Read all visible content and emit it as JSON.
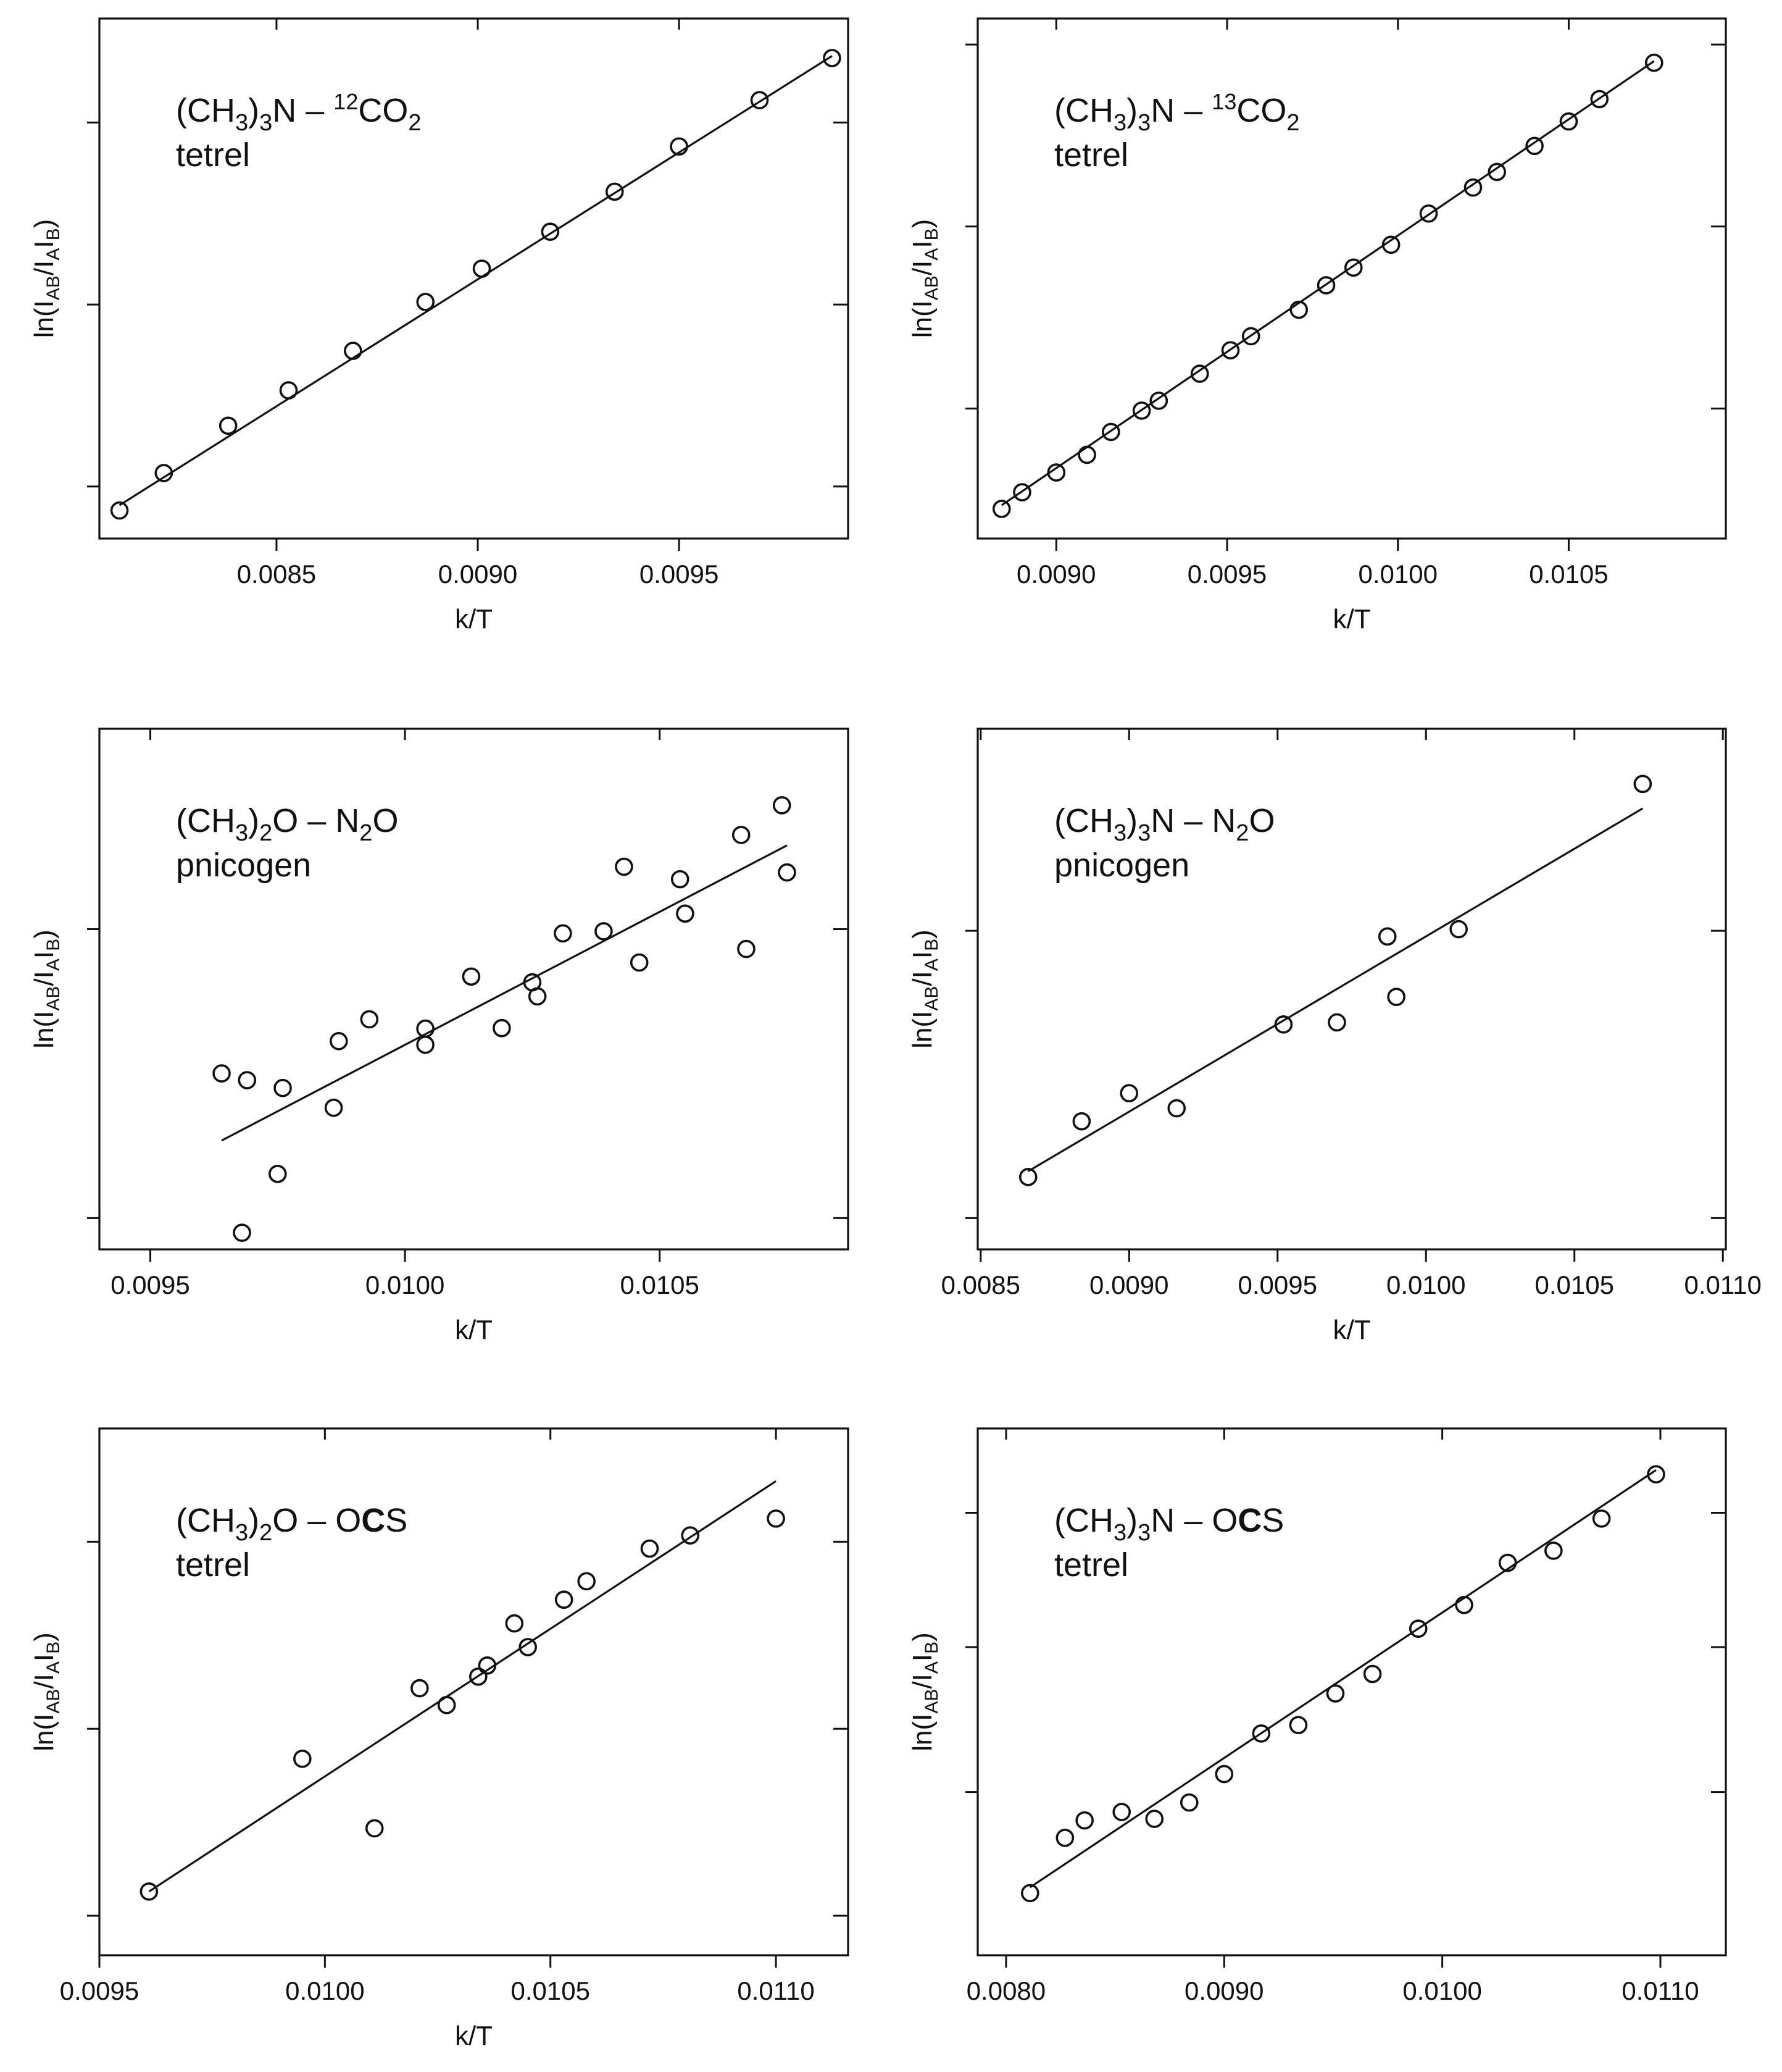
{
  "figure": {
    "panels_count": 6
  },
  "chart_data": [
    {
      "id": "p1",
      "type": "scatter",
      "title": "",
      "ylabel": "ln(I_AB/I_A I_B)",
      "xlabel": "k/T",
      "annotation": {
        "main_pre": "(CH",
        "sub1": "3",
        "main_mid": ")",
        "sub2": "3",
        "main_post": "N – ",
        "iso": "12",
        "main_end": "CO",
        "sub3": "2",
        "line2": "tetrel"
      },
      "xlim": [
        0.00806,
        0.00992
      ],
      "ylim": [
        0,
        1
      ],
      "xticks": [
        0.0085,
        0.009,
        0.0095
      ],
      "xtick_labels": [
        "0.0085",
        "0.0090",
        "0.0095"
      ],
      "yticks": [
        0.1,
        0.45,
        0.8
      ],
      "grid": false,
      "x": [
        0.00811,
        0.00822,
        0.00838,
        0.00853,
        0.00869,
        0.00887,
        0.00901,
        0.00918,
        0.00934,
        0.0095,
        0.0097,
        0.00988
      ],
      "y": [
        0.054,
        0.126,
        0.217,
        0.285,
        0.361,
        0.455,
        0.519,
        0.59,
        0.667,
        0.754,
        0.843,
        0.924
      ],
      "fit": [
        [
          0.00811,
          0.064
        ],
        [
          0.00988,
          0.928
        ]
      ]
    },
    {
      "id": "p2",
      "type": "scatter",
      "ylabel": "ln(I_AB/I_A I_B)",
      "xlabel": "k/T",
      "annotation": {
        "main_pre": "(CH",
        "sub1": "3",
        "main_mid": ")",
        "sub2": "3",
        "main_post": "N – ",
        "iso": "13",
        "main_end": "CO",
        "sub3": "2",
        "line2": "tetrel"
      },
      "xlim": [
        0.00877,
        0.01096
      ],
      "ylim": [
        0,
        1
      ],
      "xticks": [
        0.009,
        0.0095,
        0.01,
        0.0105
      ],
      "xtick_labels": [
        "0.0090",
        "0.0095",
        "0.0100",
        "0.0105"
      ],
      "yticks": [
        0.25,
        0.6,
        0.95
      ],
      "grid": false,
      "x": [
        0.00884,
        0.0089,
        0.009,
        0.00909,
        0.00916,
        0.00925,
        0.0093,
        0.00942,
        0.00951,
        0.00957,
        0.00971,
        0.00979,
        0.00987,
        0.00998,
        0.01009,
        0.01022,
        0.01029,
        0.0104,
        0.0105,
        0.01059,
        0.01075
      ],
      "y": [
        0.057,
        0.089,
        0.127,
        0.161,
        0.205,
        0.246,
        0.265,
        0.317,
        0.362,
        0.389,
        0.44,
        0.487,
        0.521,
        0.565,
        0.625,
        0.675,
        0.705,
        0.755,
        0.802,
        0.845,
        0.915
      ],
      "fit": [
        [
          0.00884,
          0.064
        ],
        [
          0.01075,
          0.918
        ]
      ]
    },
    {
      "id": "p3",
      "type": "scatter",
      "ylabel": "ln(I_AB/I_A I_B)",
      "xlabel": "k/T",
      "annotation": {
        "main_pre": "(CH",
        "sub1": "3",
        "main_mid": ")",
        "sub2": "2",
        "main_post": "O – N",
        "iso": "",
        "main_end": "",
        "sub3": "2",
        "tail": "O",
        "line2": "pnicogen"
      },
      "xlim": [
        0.0094,
        0.01087
      ],
      "ylim": [
        0,
        1
      ],
      "xticks": [
        0.0095,
        0.01,
        0.0105
      ],
      "xtick_labels": [
        "0.0095",
        "0.0100",
        "0.0105"
      ],
      "yticks": [
        0.06,
        0.615
      ],
      "grid": false,
      "x": [
        0.00964,
        0.00969,
        0.00968,
        0.00975,
        0.00976,
        0.00986,
        0.00987,
        0.00993,
        0.01004,
        0.01004,
        0.01013,
        0.01019,
        0.01025,
        0.01026,
        0.01031,
        0.01039,
        0.01043,
        0.01046,
        0.01054,
        0.01055,
        0.01066,
        0.01067,
        0.01074,
        0.01075
      ],
      "y": [
        0.338,
        0.325,
        0.032,
        0.145,
        0.31,
        0.272,
        0.4,
        0.442,
        0.424,
        0.393,
        0.524,
        0.425,
        0.513,
        0.486,
        0.607,
        0.611,
        0.735,
        0.551,
        0.711,
        0.645,
        0.796,
        0.577,
        0.853,
        0.724
      ],
      "fit": [
        [
          0.00964,
          0.209
        ],
        [
          0.01075,
          0.776
        ]
      ]
    },
    {
      "id": "p4",
      "type": "scatter",
      "ylabel": "ln(I_AB/I_A I_B)",
      "xlabel": "k/T",
      "annotation": {
        "main_pre": "(CH",
        "sub1": "3",
        "main_mid": ")",
        "sub2": "3",
        "main_post": "N – N",
        "iso": "",
        "main_end": "",
        "sub3": "2",
        "tail": "O",
        "line2": "pnicogen"
      },
      "xlim": [
        0.00849,
        0.01101
      ],
      "ylim": [
        0,
        1
      ],
      "xticks": [
        0.0085,
        0.009,
        0.0095,
        0.01,
        0.0105,
        0.011
      ],
      "xtick_labels": [
        "0.0085",
        "0.0090",
        "0.0095",
        "0.0100",
        "0.0105",
        "0.0110"
      ],
      "yticks": [
        0.06,
        0.612
      ],
      "grid": false,
      "x": [
        0.00866,
        0.00884,
        0.009,
        0.00916,
        0.00952,
        0.0097,
        0.00987,
        0.0099,
        0.01011,
        0.01073
      ],
      "y": [
        0.139,
        0.246,
        0.3,
        0.271,
        0.432,
        0.436,
        0.601,
        0.485,
        0.615,
        0.894
      ],
      "fit": [
        [
          0.00866,
          0.15
        ],
        [
          0.01073,
          0.847
        ]
      ]
    },
    {
      "id": "p5",
      "type": "scatter",
      "ylabel": "ln(I_AB/I_A I_B)",
      "xlabel": "k/T",
      "annotation": {
        "main_pre": "(CH",
        "sub1": "3",
        "main_mid": ")",
        "sub2": "2",
        "main_post": "O – O",
        "bold": "C",
        "tail": "S",
        "line2": "tetrel"
      },
      "xlim": [
        0.0095,
        0.01116
      ],
      "ylim": [
        0,
        1
      ],
      "xticks": [
        0.0095,
        0.01,
        0.0105,
        0.011
      ],
      "xtick_labels": [
        "0.0095",
        "0.0100",
        "0.0105",
        "0.0110"
      ],
      "yticks": [
        0.075,
        0.43,
        0.785
      ],
      "grid": false,
      "x": [
        0.00961,
        0.00995,
        0.01011,
        0.01021,
        0.01027,
        0.01034,
        0.01036,
        0.01042,
        0.01045,
        0.01053,
        0.01058,
        0.01072,
        0.01081,
        0.011
      ],
      "y": [
        0.121,
        0.373,
        0.241,
        0.507,
        0.475,
        0.529,
        0.55,
        0.63,
        0.585,
        0.675,
        0.71,
        0.772,
        0.797,
        0.829
      ],
      "fit": [
        [
          0.00961,
          0.121
        ],
        [
          0.011,
          0.9
        ]
      ]
    },
    {
      "id": "p6",
      "type": "scatter",
      "ylabel": "ln(I_AB/I_A I_B)",
      "xlabel": "",
      "annotation": {
        "main_pre": "(CH",
        "sub1": "3",
        "main_mid": ")",
        "sub2": "3",
        "main_post": "N – O",
        "bold": "C",
        "tail": "S",
        "line2": "tetrel"
      },
      "xlim": [
        0.00787,
        0.0113
      ],
      "ylim": [
        0,
        1
      ],
      "xticks": [
        0.008,
        0.009,
        0.01,
        0.011
      ],
      "xtick_labels": [
        "0.0080",
        "0.0090",
        "0.0100",
        "0.0110"
      ],
      "yticks": [
        0.31,
        0.585,
        0.84
      ],
      "grid": false,
      "x": [
        0.00811,
        0.00827,
        0.00836,
        0.00853,
        0.00868,
        0.00884,
        0.009,
        0.00917,
        0.00934,
        0.00951,
        0.00968,
        0.00989,
        0.0101,
        0.0103,
        0.01051,
        0.01073,
        0.01098
      ],
      "y": [
        0.118,
        0.223,
        0.256,
        0.272,
        0.259,
        0.29,
        0.344,
        0.421,
        0.437,
        0.497,
        0.534,
        0.62,
        0.665,
        0.745,
        0.768,
        0.829,
        0.913
      ],
      "fit": [
        [
          0.00811,
          0.129
        ],
        [
          0.01098,
          0.921
        ]
      ]
    }
  ]
}
